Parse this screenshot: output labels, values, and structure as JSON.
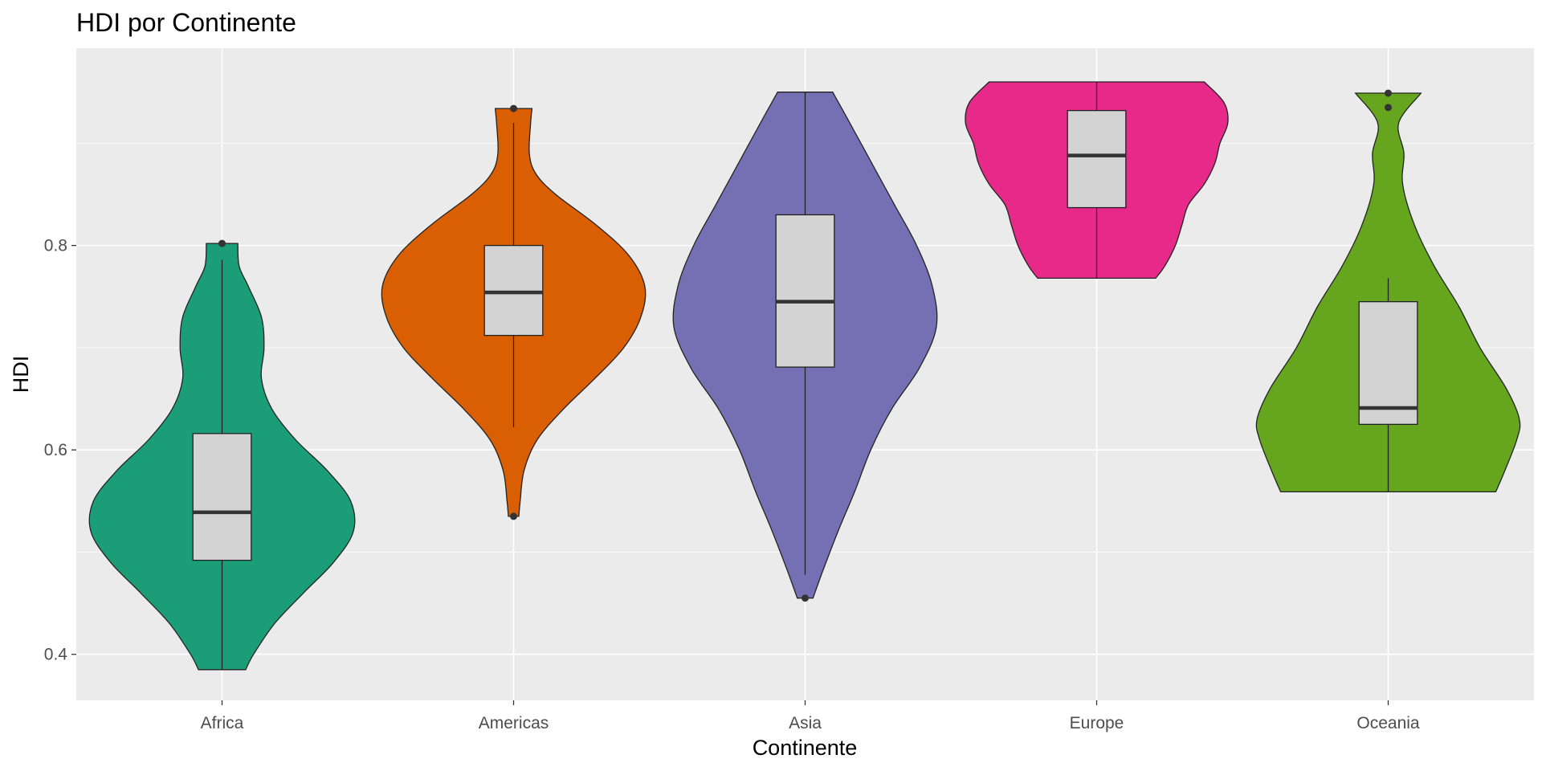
{
  "chart_data": {
    "type": "violin",
    "title": "HDI por Continente",
    "xlabel": "Continente",
    "ylabel": "HDI",
    "ylim": [
      0.355,
      0.993
    ],
    "yticks": [
      0.4,
      0.6,
      0.8
    ],
    "ytick_labels": [
      "0.4",
      "0.6",
      "0.8"
    ],
    "grid": true,
    "legend": "none",
    "categories": [
      "Africa",
      "Americas",
      "Asia",
      "Europe",
      "Oceania"
    ],
    "groups": [
      {
        "category": "Africa",
        "color": "#1B9E77",
        "box": {
          "whisker_low": 0.385,
          "q1": 0.492,
          "median": 0.539,
          "q3": 0.616,
          "whisker_high": 0.786
        },
        "outliers": [
          0.802
        ],
        "violin": {
          "min": 0.385,
          "max": 0.802,
          "profile": [
            [
              0.385,
              0.18
            ],
            [
              0.4,
              0.24
            ],
            [
              0.43,
              0.4
            ],
            [
              0.46,
              0.62
            ],
            [
              0.49,
              0.85
            ],
            [
              0.52,
              1.0
            ],
            [
              0.55,
              0.98
            ],
            [
              0.58,
              0.8
            ],
            [
              0.61,
              0.56
            ],
            [
              0.64,
              0.38
            ],
            [
              0.67,
              0.3
            ],
            [
              0.7,
              0.32
            ],
            [
              0.73,
              0.3
            ],
            [
              0.76,
              0.2
            ],
            [
              0.78,
              0.13
            ],
            [
              0.802,
              0.12
            ]
          ]
        }
      },
      {
        "category": "Americas",
        "color": "#D95F02",
        "box": {
          "whisker_low": 0.622,
          "q1": 0.712,
          "median": 0.754,
          "q3": 0.8,
          "whisker_high": 0.92
        },
        "outliers": [
          0.535,
          0.934
        ],
        "violin": {
          "min": 0.535,
          "max": 0.934,
          "profile": [
            [
              0.535,
              0.04
            ],
            [
              0.55,
              0.05
            ],
            [
              0.58,
              0.08
            ],
            [
              0.61,
              0.18
            ],
            [
              0.64,
              0.38
            ],
            [
              0.67,
              0.62
            ],
            [
              0.7,
              0.84
            ],
            [
              0.73,
              0.97
            ],
            [
              0.76,
              1.0
            ],
            [
              0.79,
              0.88
            ],
            [
              0.82,
              0.63
            ],
            [
              0.85,
              0.32
            ],
            [
              0.87,
              0.17
            ],
            [
              0.89,
              0.12
            ],
            [
              0.92,
              0.13
            ],
            [
              0.934,
              0.14
            ]
          ]
        }
      },
      {
        "category": "Asia",
        "color": "#7570B3",
        "box": {
          "whisker_low": 0.478,
          "q1": 0.681,
          "median": 0.745,
          "q3": 0.83,
          "whisker_high": 0.95
        },
        "outliers": [
          0.455
        ],
        "violin": {
          "min": 0.455,
          "max": 0.95,
          "profile": [
            [
              0.455,
              0.06
            ],
            [
              0.48,
              0.13
            ],
            [
              0.52,
              0.25
            ],
            [
              0.56,
              0.38
            ],
            [
              0.6,
              0.5
            ],
            [
              0.64,
              0.66
            ],
            [
              0.68,
              0.87
            ],
            [
              0.72,
              1.0
            ],
            [
              0.76,
              0.97
            ],
            [
              0.8,
              0.85
            ],
            [
              0.84,
              0.68
            ],
            [
              0.88,
              0.51
            ],
            [
              0.92,
              0.34
            ],
            [
              0.95,
              0.21
            ]
          ]
        }
      },
      {
        "category": "Europe",
        "color": "#E7298A",
        "box": {
          "whisker_low": 0.768,
          "q1": 0.837,
          "median": 0.888,
          "q3": 0.932,
          "whisker_high": 0.96
        },
        "outliers": [],
        "violin": {
          "min": 0.768,
          "max": 0.96,
          "profile": [
            [
              0.768,
              0.45
            ],
            [
              0.78,
              0.52
            ],
            [
              0.8,
              0.6
            ],
            [
              0.82,
              0.65
            ],
            [
              0.84,
              0.7
            ],
            [
              0.86,
              0.82
            ],
            [
              0.88,
              0.9
            ],
            [
              0.9,
              0.94
            ],
            [
              0.92,
              1.0
            ],
            [
              0.94,
              0.97
            ],
            [
              0.96,
              0.82
            ]
          ]
        }
      },
      {
        "category": "Oceania",
        "color": "#66A61E",
        "box": {
          "whisker_low": 0.559,
          "q1": 0.625,
          "median": 0.641,
          "q3": 0.745,
          "whisker_high": 0.768
        },
        "outliers": [
          0.935,
          0.949
        ],
        "violin": {
          "min": 0.559,
          "max": 0.949,
          "profile": [
            [
              0.559,
              0.82
            ],
            [
              0.58,
              0.89
            ],
            [
              0.61,
              0.98
            ],
            [
              0.63,
              1.0
            ],
            [
              0.66,
              0.9
            ],
            [
              0.7,
              0.7
            ],
            [
              0.74,
              0.54
            ],
            [
              0.78,
              0.35
            ],
            [
              0.82,
              0.2
            ],
            [
              0.86,
              0.11
            ],
            [
              0.89,
              0.12
            ],
            [
              0.92,
              0.08
            ],
            [
              0.949,
              0.25
            ]
          ]
        }
      }
    ]
  }
}
